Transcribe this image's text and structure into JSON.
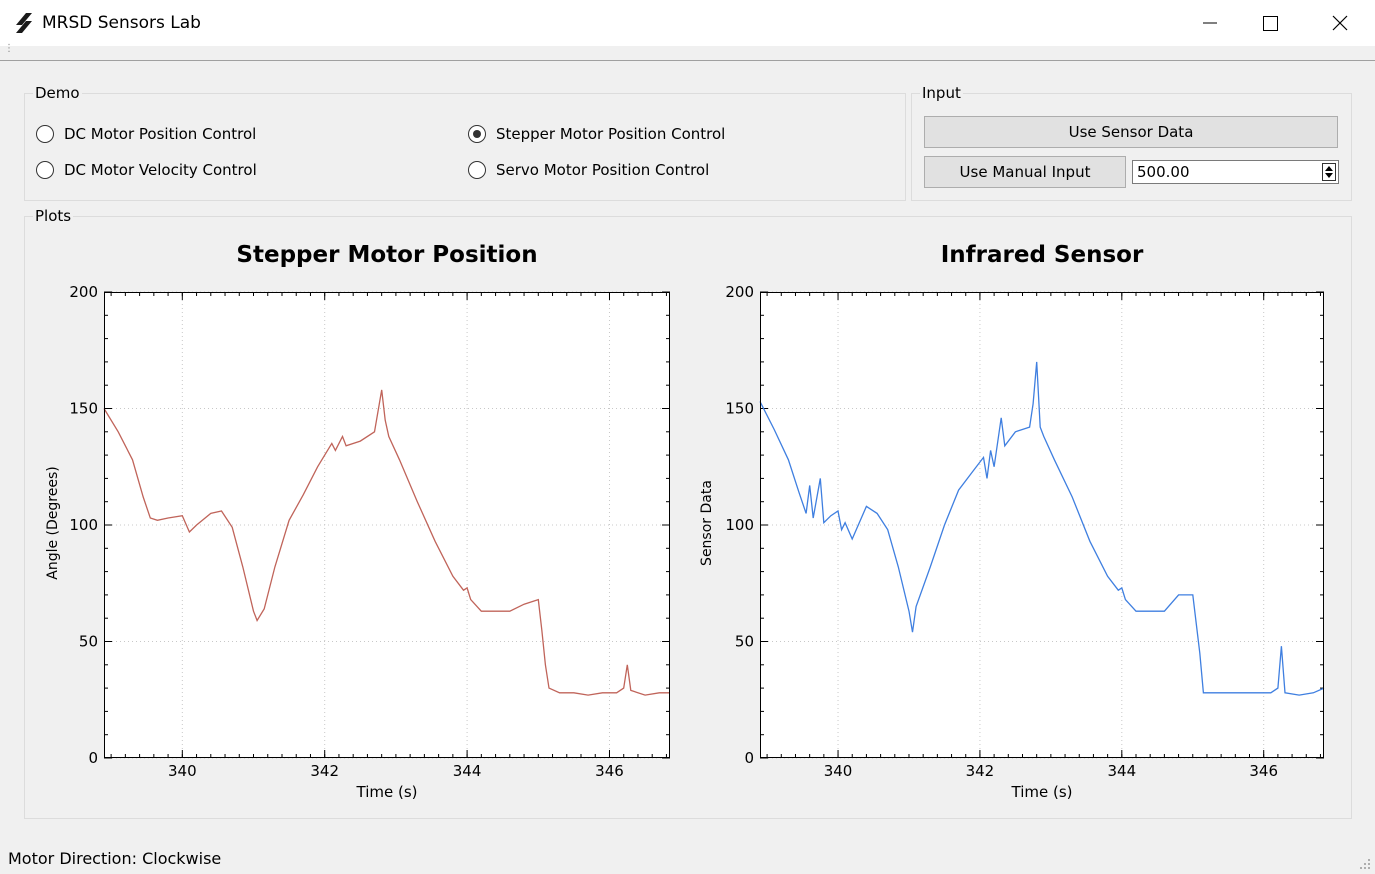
{
  "window": {
    "title": "MRSD Sensors Lab"
  },
  "demo": {
    "title": "Demo",
    "options": [
      {
        "label": "DC Motor Position Control",
        "checked": false
      },
      {
        "label": "DC Motor Velocity Control",
        "checked": false
      },
      {
        "label": "Stepper Motor Position Control",
        "checked": true
      },
      {
        "label": "Servo Motor Position Control",
        "checked": false
      }
    ]
  },
  "input": {
    "title": "Input",
    "sensor_button": "Use Sensor Data",
    "manual_button": "Use Manual Input",
    "manual_value": "500.00"
  },
  "plots": {
    "title": "Plots"
  },
  "status": {
    "text": "Motor Direction: Clockwise"
  },
  "chart_data": [
    {
      "type": "line",
      "title": "Stepper Motor Position",
      "xlabel": "Time (s)",
      "ylabel": "Angle (Degrees)",
      "xlim": [
        338.9,
        346.85
      ],
      "ylim": [
        0,
        200
      ],
      "xticks": [
        340,
        342,
        344,
        346
      ],
      "yticks": [
        0,
        50,
        100,
        150,
        200
      ],
      "grid": true,
      "color": "#c0645a",
      "x": [
        338.9,
        339.1,
        339.3,
        339.45,
        339.55,
        339.65,
        339.8,
        340.0,
        340.1,
        340.2,
        340.4,
        340.55,
        340.7,
        340.85,
        341.0,
        341.05,
        341.15,
        341.3,
        341.5,
        341.7,
        341.9,
        342.1,
        342.15,
        342.25,
        342.3,
        342.5,
        342.7,
        342.8,
        342.85,
        342.9,
        343.05,
        343.3,
        343.55,
        343.8,
        343.95,
        344.0,
        344.05,
        344.2,
        344.4,
        344.6,
        344.8,
        345.0,
        345.05,
        345.1,
        345.15,
        345.3,
        345.5,
        345.7,
        345.9,
        346.1,
        346.2,
        346.25,
        346.3,
        346.5,
        346.7,
        346.85
      ],
      "y": [
        150,
        140,
        128,
        112,
        103,
        102,
        103,
        104,
        97,
        100,
        105,
        106,
        99,
        82,
        63,
        59,
        64,
        82,
        102,
        113,
        125,
        135,
        132,
        138,
        134,
        136,
        140,
        158,
        145,
        138,
        128,
        110,
        93,
        78,
        72,
        73,
        68,
        63,
        63,
        63,
        66,
        68,
        55,
        40,
        30,
        28,
        28,
        27,
        28,
        28,
        30,
        40,
        29,
        27,
        28,
        28
      ]
    },
    {
      "type": "line",
      "title": "Infrared Sensor",
      "xlabel": "Time (s)",
      "ylabel": "Sensor Data",
      "xlim": [
        338.9,
        346.85
      ],
      "ylim": [
        0,
        200
      ],
      "xticks": [
        340,
        342,
        344,
        346
      ],
      "yticks": [
        0,
        50,
        100,
        150,
        200
      ],
      "grid": true,
      "color": "#3f7fe0",
      "x": [
        338.9,
        339.1,
        339.3,
        339.45,
        339.55,
        339.6,
        339.65,
        339.75,
        339.8,
        339.9,
        340.0,
        340.05,
        340.1,
        340.2,
        340.4,
        340.55,
        340.7,
        340.85,
        341.0,
        341.05,
        341.1,
        341.3,
        341.5,
        341.7,
        341.9,
        342.05,
        342.1,
        342.15,
        342.2,
        342.3,
        342.35,
        342.5,
        342.7,
        342.75,
        342.8,
        342.85,
        342.9,
        343.05,
        343.3,
        343.55,
        343.8,
        343.95,
        344.0,
        344.05,
        344.2,
        344.4,
        344.6,
        344.8,
        345.0,
        345.1,
        345.15,
        345.3,
        345.5,
        345.7,
        345.9,
        346.1,
        346.2,
        346.25,
        346.3,
        346.5,
        346.7,
        346.85
      ],
      "y": [
        153,
        141,
        128,
        114,
        105,
        117,
        103,
        120,
        101,
        104,
        106,
        98,
        101,
        94,
        108,
        105,
        98,
        82,
        63,
        54,
        65,
        82,
        100,
        115,
        123,
        129,
        120,
        132,
        125,
        146,
        134,
        140,
        142,
        152,
        170,
        142,
        138,
        128,
        112,
        93,
        78,
        72,
        73,
        68,
        63,
        63,
        63,
        70,
        70,
        45,
        28,
        28,
        28,
        28,
        28,
        28,
        30,
        48,
        28,
        27,
        28,
        30
      ]
    }
  ]
}
